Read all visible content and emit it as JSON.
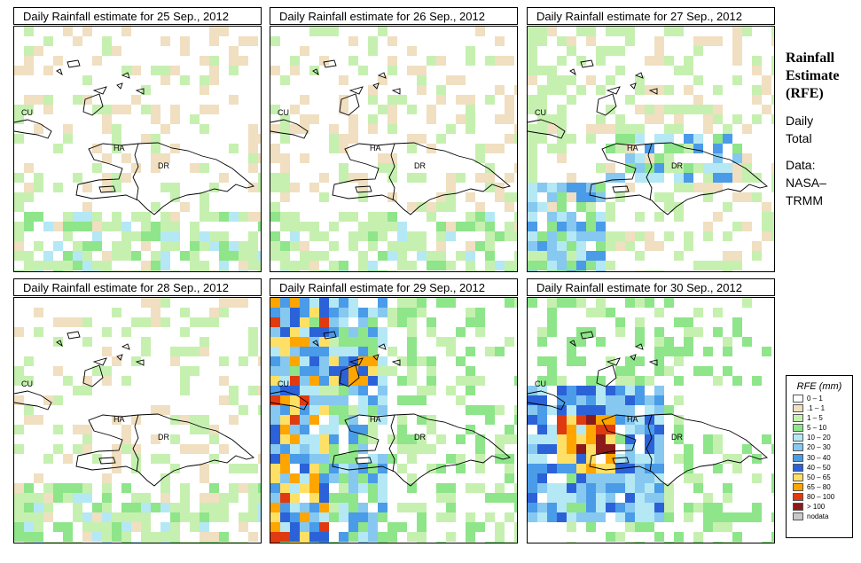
{
  "panels": [
    {
      "title": "Daily Rainfall estimate for  25 Sep., 2012",
      "intensity": "light",
      "labels": [
        "CU",
        "HA",
        "DR"
      ]
    },
    {
      "title": "Daily Rainfall estimate for  26 Sep., 2012",
      "intensity": "light",
      "labels": [
        "CU",
        "HA",
        "DR"
      ]
    },
    {
      "title": "Daily Rainfall estimate for  27 Sep., 2012",
      "intensity": "moderate",
      "labels": [
        "CU",
        "HA",
        "DR"
      ]
    },
    {
      "title": "Daily Rainfall estimate for  28 Sep., 2012",
      "intensity": "light",
      "labels": [
        "CU",
        "HA",
        "DR"
      ]
    },
    {
      "title": "Daily Rainfall estimate for  29 Sep., 2012",
      "intensity": "heavy-west",
      "labels": [
        "CU",
        "HA",
        "DR"
      ]
    },
    {
      "title": "Daily Rainfall estimate for  30 Sep., 2012",
      "intensity": "heavy-haiti",
      "labels": [
        "CU",
        "HA",
        "DR"
      ]
    }
  ],
  "side": {
    "title_lines": [
      "Rainfall",
      "Estimate",
      "(RFE)"
    ],
    "daily_lines": [
      "Daily",
      "Total"
    ],
    "data_lines": [
      "Data:",
      "NASA–",
      "TRMM"
    ]
  },
  "legend": {
    "title": "RFE (mm)",
    "items": [
      {
        "label": "0 – 1",
        "color": "#ffffff"
      },
      {
        "label": ".1 – 1",
        "color": "#f0dfc0"
      },
      {
        "label": "1 – 5",
        "color": "#c6f0b0"
      },
      {
        "label": "5 – 10",
        "color": "#8ee58a"
      },
      {
        "label": "10 – 20",
        "color": "#b4e8f5"
      },
      {
        "label": "20 – 30",
        "color": "#86c8f0"
      },
      {
        "label": "30 – 40",
        "color": "#4a9be8"
      },
      {
        "label": "40 – 50",
        "color": "#2b62d8"
      },
      {
        "label": "50 – 65",
        "color": "#ffe066"
      },
      {
        "label": "65 – 80",
        "color": "#ffa500"
      },
      {
        "label": "80 – 100",
        "color": "#e03a10"
      },
      {
        "label": "> 100",
        "color": "#8b1a1a"
      },
      {
        "label": "nodata",
        "color": "#c8c8c8"
      }
    ]
  }
}
